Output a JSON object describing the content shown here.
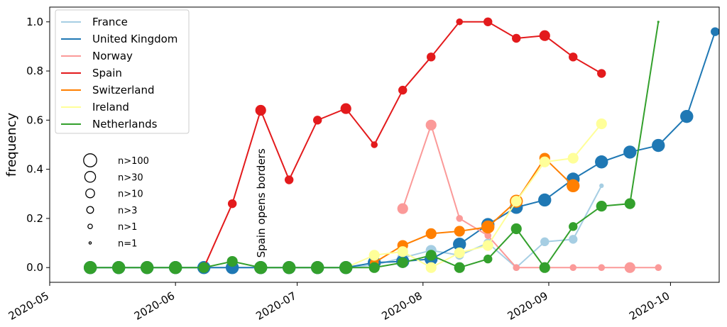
{
  "chart_data": {
    "type": "line",
    "ylabel": "frequency",
    "xlabel": "",
    "title": "",
    "xlim": [
      "2020-05-01",
      "2020-10-13"
    ],
    "ylim": [
      -0.06,
      1.06
    ],
    "grid": false,
    "xticks": [
      {
        "date": "2020-05-01",
        "label": "2020-05"
      },
      {
        "date": "2020-06-01",
        "label": "2020-06"
      },
      {
        "date": "2020-07-01",
        "label": "2020-07"
      },
      {
        "date": "2020-08-01",
        "label": "2020-08"
      },
      {
        "date": "2020-09-01",
        "label": "2020-09"
      },
      {
        "date": "2020-10-01",
        "label": "2020-10"
      }
    ],
    "yticks": [
      {
        "value": 0.0,
        "label": "0.0"
      },
      {
        "value": 0.2,
        "label": "0.2"
      },
      {
        "value": 0.4,
        "label": "0.4"
      },
      {
        "value": 0.6,
        "label": "0.6"
      },
      {
        "value": 0.8,
        "label": "0.8"
      },
      {
        "value": 1.0,
        "label": "1.0"
      }
    ],
    "legend_placement": "top-left",
    "series": [
      {
        "name": "France",
        "color": "#a6cee3",
        "points": [
          {
            "date": "2020-05-11",
            "y": 0.0,
            "n": "n>100"
          },
          {
            "date": "2020-05-18",
            "y": 0.0,
            "n": "n>100"
          },
          {
            "date": "2020-05-25",
            "y": 0.0,
            "n": "n>100"
          },
          {
            "date": "2020-06-01",
            "y": 0.0,
            "n": "n>100"
          },
          {
            "date": "2020-06-08",
            "y": 0.0,
            "n": "n>100"
          },
          {
            "date": "2020-06-15",
            "y": 0.0,
            "n": "n>100"
          },
          {
            "date": "2020-06-22",
            "y": 0.0,
            "n": "n>100"
          },
          {
            "date": "2020-06-29",
            "y": 0.0,
            "n": "n>100"
          },
          {
            "date": "2020-07-06",
            "y": 0.0,
            "n": "n>100"
          },
          {
            "date": "2020-07-13",
            "y": 0.0,
            "n": "n>100"
          },
          {
            "date": "2020-07-20",
            "y": 0.01,
            "n": "n>30"
          },
          {
            "date": "2020-07-27",
            "y": 0.04,
            "n": "n>30"
          },
          {
            "date": "2020-08-03",
            "y": 0.07,
            "n": "n>30"
          },
          {
            "date": "2020-08-10",
            "y": 0.05,
            "n": "n>10"
          },
          {
            "date": "2020-08-17",
            "y": 0.1,
            "n": "n>10"
          },
          {
            "date": "2020-08-24",
            "y": 0.0,
            "n": "n>3"
          },
          {
            "date": "2020-08-31",
            "y": 0.105,
            "n": "n>10"
          },
          {
            "date": "2020-09-07",
            "y": 0.115,
            "n": "n>10"
          },
          {
            "date": "2020-09-14",
            "y": 0.333,
            "n": "n>1"
          }
        ]
      },
      {
        "name": "United Kingdom",
        "color": "#1f78b4",
        "points": [
          {
            "date": "2020-05-11",
            "y": 0.0,
            "n": "n>100"
          },
          {
            "date": "2020-05-18",
            "y": 0.0,
            "n": "n>100"
          },
          {
            "date": "2020-05-25",
            "y": 0.0,
            "n": "n>100"
          },
          {
            "date": "2020-06-01",
            "y": 0.0,
            "n": "n>100"
          },
          {
            "date": "2020-06-08",
            "y": 0.0,
            "n": "n>100"
          },
          {
            "date": "2020-06-15",
            "y": 0.0,
            "n": "n>100"
          },
          {
            "date": "2020-06-22",
            "y": 0.0,
            "n": "n>100"
          },
          {
            "date": "2020-06-29",
            "y": 0.0,
            "n": "n>100"
          },
          {
            "date": "2020-07-06",
            "y": 0.0,
            "n": "n>100"
          },
          {
            "date": "2020-07-13",
            "y": 0.0,
            "n": "n>100"
          },
          {
            "date": "2020-07-20",
            "y": 0.02,
            "n": "n>100"
          },
          {
            "date": "2020-07-27",
            "y": 0.025,
            "n": "n>100"
          },
          {
            "date": "2020-08-03",
            "y": 0.035,
            "n": "n>100"
          },
          {
            "date": "2020-08-10",
            "y": 0.095,
            "n": "n>100"
          },
          {
            "date": "2020-08-17",
            "y": 0.175,
            "n": "n>100"
          },
          {
            "date": "2020-08-24",
            "y": 0.245,
            "n": "n>100"
          },
          {
            "date": "2020-08-31",
            "y": 0.275,
            "n": "n>100"
          },
          {
            "date": "2020-09-07",
            "y": 0.36,
            "n": "n>100"
          },
          {
            "date": "2020-09-14",
            "y": 0.43,
            "n": "n>100"
          },
          {
            "date": "2020-09-21",
            "y": 0.47,
            "n": "n>100"
          },
          {
            "date": "2020-09-28",
            "y": 0.497,
            "n": "n>100"
          },
          {
            "date": "2020-10-05",
            "y": 0.615,
            "n": "n>100"
          },
          {
            "date": "2020-10-12",
            "y": 0.96,
            "n": "n>10"
          }
        ]
      },
      {
        "name": "Norway",
        "color": "#fb9a99",
        "points": [
          {
            "date": "2020-07-27",
            "y": 0.24,
            "n": "n>30"
          },
          {
            "date": "2020-08-03",
            "y": 0.58,
            "n": "n>30"
          },
          {
            "date": "2020-08-10",
            "y": 0.2,
            "n": "n>3"
          },
          {
            "date": "2020-08-17",
            "y": 0.13,
            "n": "n>3"
          },
          {
            "date": "2020-08-24",
            "y": 0.0,
            "n": "n>3"
          },
          {
            "date": "2020-08-31",
            "y": 0.0,
            "n": "n>3"
          },
          {
            "date": "2020-09-07",
            "y": 0.0,
            "n": "n>3"
          },
          {
            "date": "2020-09-14",
            "y": 0.0,
            "n": "n>3"
          },
          {
            "date": "2020-09-21",
            "y": 0.0,
            "n": "n>30"
          },
          {
            "date": "2020-09-28",
            "y": 0.0,
            "n": "n>3"
          }
        ]
      },
      {
        "name": "Spain",
        "color": "#e31a1c",
        "points": [
          {
            "date": "2020-06-08",
            "y": 0.0,
            "n": "n=1"
          },
          {
            "date": "2020-06-15",
            "y": 0.26,
            "n": "n>10"
          },
          {
            "date": "2020-06-22",
            "y": 0.64,
            "n": "n>30"
          },
          {
            "date": "2020-06-29",
            "y": 0.357,
            "n": "n>10"
          },
          {
            "date": "2020-07-06",
            "y": 0.6,
            "n": "n>10"
          },
          {
            "date": "2020-07-13",
            "y": 0.647,
            "n": "n>30"
          },
          {
            "date": "2020-07-20",
            "y": 0.5,
            "n": "n>3"
          },
          {
            "date": "2020-07-27",
            "y": 0.722,
            "n": "n>10"
          },
          {
            "date": "2020-08-03",
            "y": 0.857,
            "n": "n>10"
          },
          {
            "date": "2020-08-10",
            "y": 1.0,
            "n": "n>3"
          },
          {
            "date": "2020-08-17",
            "y": 1.0,
            "n": "n>10"
          },
          {
            "date": "2020-08-24",
            "y": 0.933,
            "n": "n>10"
          },
          {
            "date": "2020-08-31",
            "y": 0.944,
            "n": "n>30"
          },
          {
            "date": "2020-09-07",
            "y": 0.857,
            "n": "n>10"
          },
          {
            "date": "2020-09-14",
            "y": 0.79,
            "n": "n>10"
          }
        ]
      },
      {
        "name": "Switzerland",
        "color": "#ff7f00",
        "points": [
          {
            "date": "2020-07-20",
            "y": 0.02,
            "n": "n>10"
          },
          {
            "date": "2020-07-27",
            "y": 0.09,
            "n": "n>30"
          },
          {
            "date": "2020-08-03",
            "y": 0.138,
            "n": "n>30"
          },
          {
            "date": "2020-08-10",
            "y": 0.148,
            "n": "n>30"
          },
          {
            "date": "2020-08-17",
            "y": 0.165,
            "n": "n>100"
          },
          {
            "date": "2020-08-24",
            "y": 0.27,
            "n": "n>100"
          },
          {
            "date": "2020-08-31",
            "y": 0.445,
            "n": "n>30"
          },
          {
            "date": "2020-09-07",
            "y": 0.333,
            "n": "n>100"
          }
        ]
      },
      {
        "name": "Ireland",
        "color": "#ffff99",
        "points": [
          {
            "date": "2020-07-13",
            "y": 0.0,
            "n": "n>30"
          },
          {
            "date": "2020-07-20",
            "y": 0.05,
            "n": "n>30"
          },
          {
            "date": "2020-07-27",
            "y": 0.065,
            "n": "n>30"
          },
          {
            "date": "2020-08-03",
            "y": 0.0,
            "n": "n>30"
          },
          {
            "date": "2020-08-10",
            "y": 0.06,
            "n": "n>30"
          },
          {
            "date": "2020-08-17",
            "y": 0.09,
            "n": "n>30"
          },
          {
            "date": "2020-08-24",
            "y": 0.27,
            "n": "n>30"
          },
          {
            "date": "2020-08-31",
            "y": 0.43,
            "n": "n>30"
          },
          {
            "date": "2020-09-07",
            "y": 0.445,
            "n": "n>30"
          },
          {
            "date": "2020-09-14",
            "y": 0.585,
            "n": "n>30"
          }
        ]
      },
      {
        "name": "Netherlands",
        "color": "#33a02c",
        "points": [
          {
            "date": "2020-05-11",
            "y": 0.0,
            "n": "n>100"
          },
          {
            "date": "2020-05-18",
            "y": 0.0,
            "n": "n>100"
          },
          {
            "date": "2020-05-25",
            "y": 0.0,
            "n": "n>100"
          },
          {
            "date": "2020-06-01",
            "y": 0.0,
            "n": "n>100"
          },
          {
            "date": "2020-06-08",
            "y": 0.0,
            "n": "n>30"
          },
          {
            "date": "2020-06-15",
            "y": 0.025,
            "n": "n>30"
          },
          {
            "date": "2020-06-22",
            "y": 0.0,
            "n": "n>100"
          },
          {
            "date": "2020-06-29",
            "y": 0.0,
            "n": "n>100"
          },
          {
            "date": "2020-07-06",
            "y": 0.0,
            "n": "n>100"
          },
          {
            "date": "2020-07-13",
            "y": 0.0,
            "n": "n>100"
          },
          {
            "date": "2020-07-20",
            "y": 0.0,
            "n": "n>30"
          },
          {
            "date": "2020-07-27",
            "y": 0.02,
            "n": "n>30"
          },
          {
            "date": "2020-08-03",
            "y": 0.05,
            "n": "n>30"
          },
          {
            "date": "2020-08-10",
            "y": 0.0,
            "n": "n>30"
          },
          {
            "date": "2020-08-17",
            "y": 0.035,
            "n": "n>10"
          },
          {
            "date": "2020-08-24",
            "y": 0.158,
            "n": "n>30"
          },
          {
            "date": "2020-08-31",
            "y": 0.0,
            "n": "n>30"
          },
          {
            "date": "2020-09-07",
            "y": 0.167,
            "n": "n>10"
          },
          {
            "date": "2020-09-14",
            "y": 0.25,
            "n": "n>30"
          },
          {
            "date": "2020-09-21",
            "y": 0.26,
            "n": "n>30"
          },
          {
            "date": "2020-09-28",
            "y": 1.0,
            "n": "n=1"
          }
        ]
      }
    ],
    "size_legend": [
      "n>100",
      "n>30",
      "n>10",
      "n>3",
      "n>1",
      "n=1"
    ],
    "annotations": [
      {
        "text": "Spain opens borders",
        "date": "2020-06-23",
        "y": 0.04,
        "rotation": -90
      }
    ]
  }
}
